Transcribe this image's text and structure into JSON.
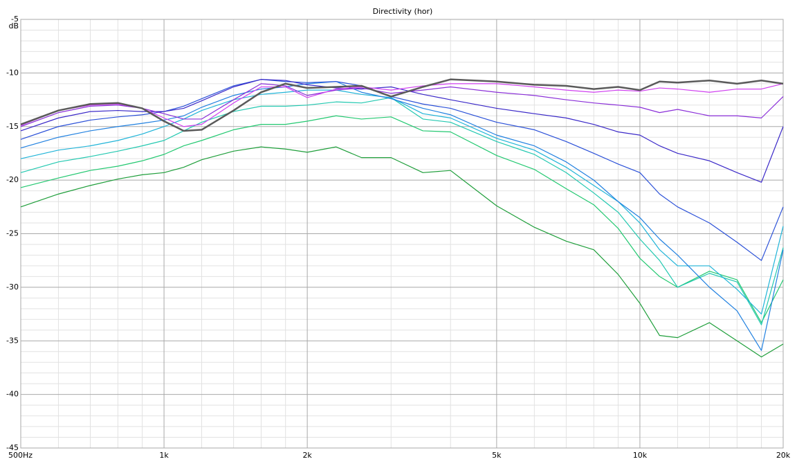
{
  "chart_data": {
    "type": "line",
    "title": "Directivity (hor)",
    "ylabel": "dB",
    "log_x": true,
    "grid": true,
    "x": [
      500,
      600,
      700,
      800,
      900,
      1000,
      1100,
      1200,
      1400,
      1600,
      1800,
      2000,
      2300,
      2600,
      3000,
      3500,
      4000,
      5000,
      6000,
      7000,
      8000,
      9000,
      10000,
      11000,
      12000,
      14000,
      16000,
      18000,
      20000
    ],
    "xlim": [
      500,
      20000
    ],
    "xticks": [
      {
        "value": 500,
        "label": "500Hz"
      },
      {
        "value": 1000,
        "label": "1k"
      },
      {
        "value": 2000,
        "label": "2k"
      },
      {
        "value": 5000,
        "label": "5k"
      },
      {
        "value": 10000,
        "label": "10k"
      },
      {
        "value": 20000,
        "label": "20k"
      }
    ],
    "xminor": [
      600,
      700,
      800,
      900,
      1200,
      1400,
      1600,
      1800,
      3000,
      4000,
      6000,
      7000,
      8000,
      9000,
      12000,
      14000,
      16000,
      18000
    ],
    "ylim": [
      -45,
      -5
    ],
    "yticks": [
      -5,
      -10,
      -15,
      -20,
      -25,
      -30,
      -35,
      -40,
      -45
    ],
    "yminor": [
      -6,
      -7,
      -8,
      -9,
      -11,
      -12,
      -13,
      -14,
      -16,
      -17,
      -18,
      -19,
      -21,
      -22,
      -23,
      -24,
      -26,
      -27,
      -28,
      -29,
      -31,
      -32,
      -33,
      -34,
      -36,
      -37,
      -38,
      -39,
      -41,
      -42,
      -43,
      -44
    ],
    "series": [
      {
        "color": "#1e9e3a",
        "values": [
          -22.5,
          -21.3,
          -20.5,
          -19.9,
          -19.5,
          -19.3,
          -18.8,
          -18.1,
          -17.3,
          -16.9,
          -17.1,
          -17.4,
          -16.9,
          -17.9,
          -17.9,
          -19.3,
          -19.1,
          -22.4,
          -24.4,
          -25.7,
          -26.5,
          -28.8,
          -31.5,
          -34.5,
          -34.7,
          -33.3,
          -35,
          -36.5,
          -35.3
        ]
      },
      {
        "color": "#22c870",
        "values": [
          -20.7,
          -19.8,
          -19.1,
          -18.7,
          -18.2,
          -17.6,
          -16.8,
          -16.3,
          -15.3,
          -14.8,
          -14.8,
          -14.5,
          -14,
          -14.3,
          -14.1,
          -15.4,
          -15.5,
          -17.7,
          -19,
          -20.8,
          -22.3,
          -24.5,
          -27.3,
          -29,
          -30,
          -28.5,
          -29.3,
          -33.3,
          -29.3
        ]
      },
      {
        "color": "#22c8b0",
        "values": [
          -19.3,
          -18.3,
          -17.8,
          -17.3,
          -16.8,
          -16.3,
          -15.4,
          -14.6,
          -13.6,
          -13.1,
          -13.1,
          -13,
          -12.7,
          -12.8,
          -12.3,
          -14.3,
          -14.6,
          -16.4,
          -17.6,
          -19.3,
          -21.2,
          -23,
          -25.5,
          -27.5,
          -30,
          -28.7,
          -29.5,
          -33.5,
          -26.3
        ]
      },
      {
        "color": "#20b4d8",
        "values": [
          -18,
          -17.2,
          -16.8,
          -16.3,
          -15.7,
          -15,
          -14.3,
          -13.5,
          -12.5,
          -12,
          -11.8,
          -11.6,
          -11.6,
          -12,
          -12.3,
          -13.8,
          -14.2,
          -16.1,
          -17.2,
          -18.8,
          -20.5,
          -22,
          -24,
          -26.5,
          -28,
          -28,
          -30.2,
          -32.5,
          -24.3
        ]
      },
      {
        "color": "#2080e0",
        "values": [
          -17,
          -16,
          -15.4,
          -15,
          -14.7,
          -14.4,
          -14,
          -13.2,
          -12.1,
          -11.5,
          -11.3,
          -11,
          -10.8,
          -11.8,
          -12.4,
          -13.3,
          -13.9,
          -15.8,
          -16.8,
          -18.3,
          -20,
          -22,
          -23.5,
          -25.5,
          -27,
          -30,
          -32.2,
          -35.9,
          -26.5
        ]
      },
      {
        "color": "#2a50d8",
        "values": [
          -16.2,
          -15,
          -14.4,
          -14.1,
          -13.9,
          -13.6,
          -13.1,
          -12.4,
          -11.2,
          -10.6,
          -10.8,
          -10.9,
          -10.8,
          -11.2,
          -12.2,
          -12.9,
          -13.3,
          -14.6,
          -15.3,
          -16.4,
          -17.5,
          -18.5,
          -19.3,
          -21.3,
          -22.5,
          -24,
          -25.8,
          -27.5,
          -22.5
        ]
      },
      {
        "color": "#3a28c8",
        "values": [
          -15.4,
          -14.2,
          -13.6,
          -13.5,
          -13.6,
          -13.6,
          -13.3,
          -12.6,
          -11.3,
          -10.6,
          -10.7,
          -11.1,
          -11.4,
          -11.5,
          -11.3,
          -12,
          -12.5,
          -13.3,
          -13.8,
          -14.2,
          -14.8,
          -15.5,
          -15.8,
          -16.8,
          -17.5,
          -18.2,
          -19.3,
          -20.2,
          -15
        ]
      },
      {
        "color": "#8a2ed8",
        "values": [
          -15,
          -13.7,
          -13.1,
          -13,
          -13.3,
          -13.8,
          -14.3,
          -14.3,
          -12.5,
          -11,
          -11.2,
          -12.1,
          -11.6,
          -11.4,
          -11.9,
          -11.6,
          -11.3,
          -11.8,
          -12.1,
          -12.5,
          -12.8,
          -13,
          -13.2,
          -13.7,
          -13.4,
          -14,
          -14,
          -14.2,
          -12.2
        ]
      },
      {
        "color": "#d040f0",
        "values": [
          -14.9,
          -13.5,
          -13,
          -12.9,
          -13.3,
          -14.2,
          -15,
          -14.8,
          -12.8,
          -11.3,
          -11.3,
          -12.3,
          -11.5,
          -11.3,
          -11.6,
          -11.2,
          -11,
          -11,
          -11.3,
          -11.6,
          -11.8,
          -11.6,
          -11.7,
          -11.4,
          -11.5,
          -11.8,
          -11.5,
          -11.5,
          -11
        ]
      },
      {
        "color": "#5a5a5a",
        "width": 2.5,
        "values": [
          -14.8,
          -13.5,
          -12.9,
          -12.8,
          -13.3,
          -14.5,
          -15.4,
          -15.3,
          -13.5,
          -11.8,
          -11,
          -11.4,
          -11.3,
          -11.2,
          -12.2,
          -11.3,
          -10.6,
          -10.8,
          -11.1,
          -11.2,
          -11.5,
          -11.3,
          -11.6,
          -10.8,
          -10.9,
          -10.7,
          -11,
          -10.7,
          -11
        ]
      }
    ]
  }
}
